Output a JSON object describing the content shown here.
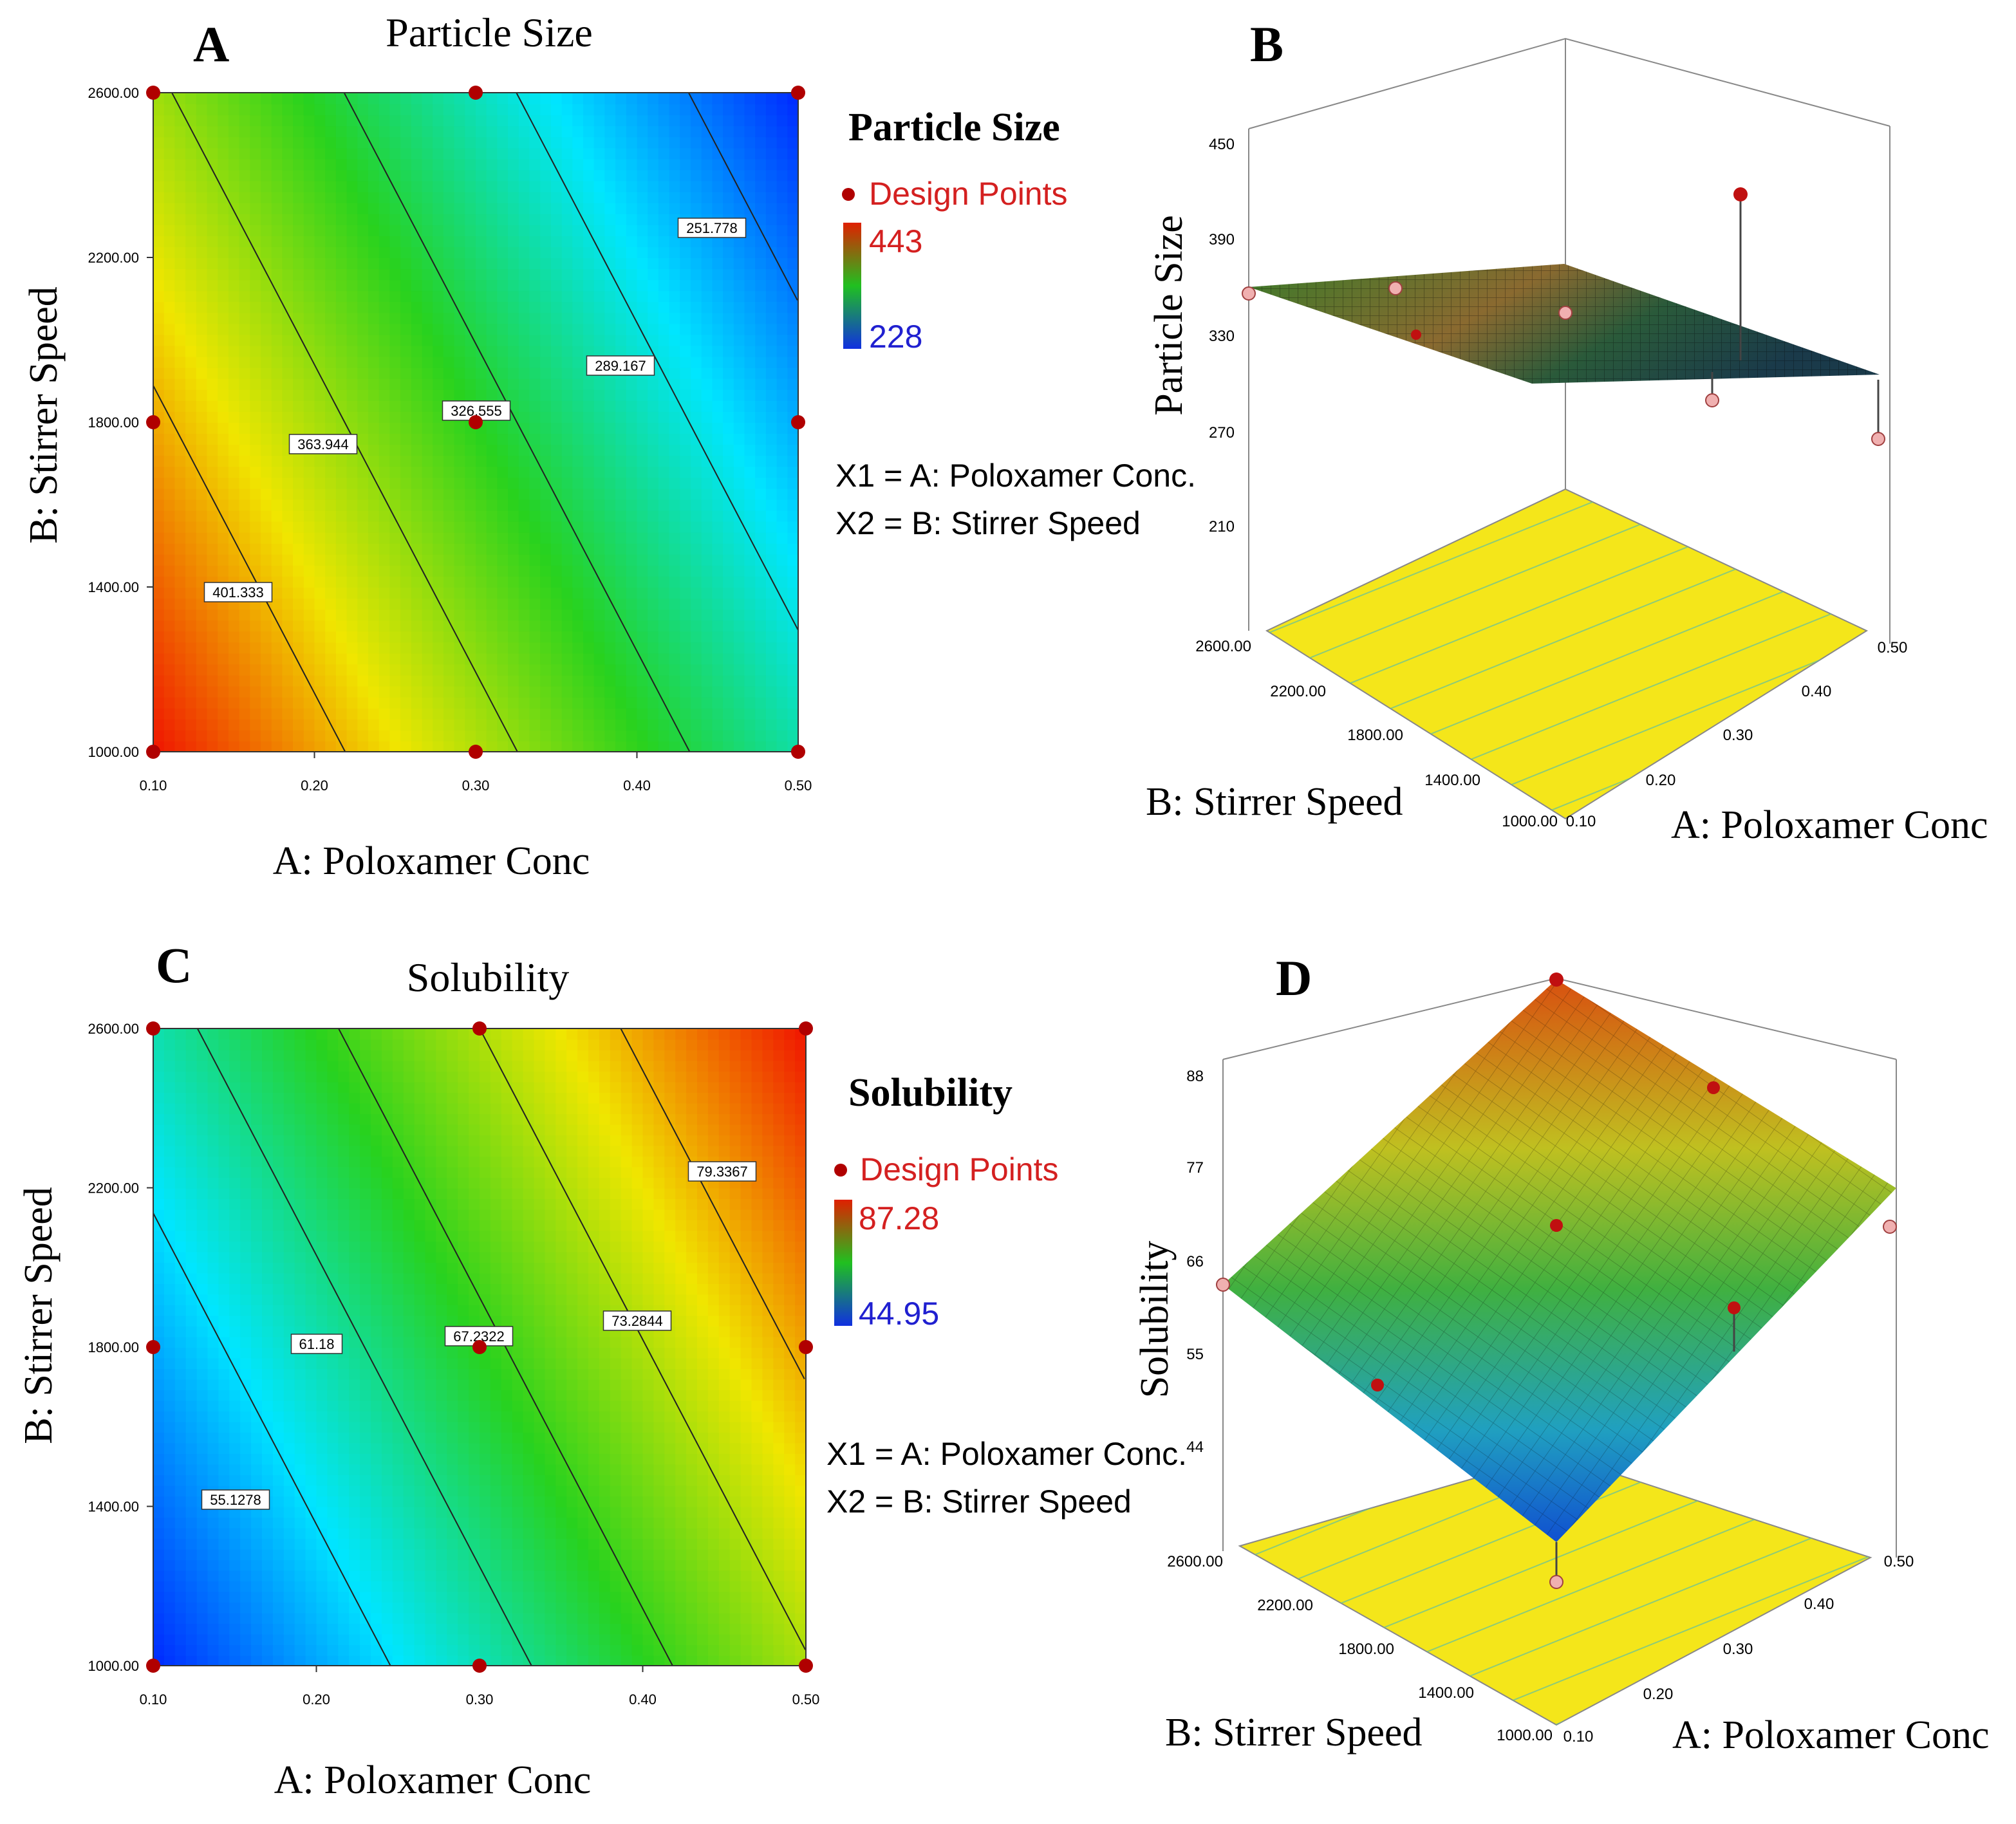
{
  "panels": {
    "A": {
      "letter": "A",
      "title": "Particle Size",
      "xlabel": "A: Poloxamer Conc",
      "ylabel": "B: Stirrer Speed"
    },
    "B": {
      "letter": "B",
      "zlabel": "Particle Size",
      "xlabel": "A: Poloxamer Conc",
      "ylabel": "B: Stirrer Speed"
    },
    "C": {
      "letter": "C",
      "title": "Solubility",
      "xlabel": "A: Poloxamer Conc",
      "ylabel": "B: Stirrer Speed"
    },
    "D": {
      "letter": "D",
      "zlabel": "Solubility",
      "xlabel": "A: Poloxamer Conc",
      "ylabel": "B: Stirrer Speed"
    }
  },
  "legend_ps": {
    "title": "Particle Size",
    "design_points": "Design Points",
    "max": "443",
    "min": "228",
    "x1": "X1 = A: Poloxamer Conc.",
    "x2": "X2 = B: Stirrer Speed"
  },
  "legend_sol": {
    "title": "Solubility",
    "design_points": "Design Points",
    "max": "87.28",
    "min": "44.95",
    "x1": "X1 = A: Poloxamer Conc.",
    "x2": "X2 = B: Stirrer Speed"
  },
  "colors": {
    "red": "#d42020",
    "blue": "#2020d0",
    "point": "#b00000"
  },
  "chart_data": [
    {
      "type": "heatmap",
      "subtype": "contour",
      "title": "Particle Size",
      "xlabel": "A: Poloxamer Conc",
      "ylabel": "B: Stirrer Speed",
      "xlim": [
        0.1,
        0.5
      ],
      "ylim": [
        1000,
        2600
      ],
      "xticks": [
        "0.10",
        "0.20",
        "0.30",
        "0.40",
        "0.50"
      ],
      "yticks": [
        "1000.00",
        "1400.00",
        "1800.00",
        "2200.00",
        "2600.00"
      ],
      "range": [
        228,
        443
      ],
      "contours": [
        {
          "value": 401.333,
          "label": "401.333"
        },
        {
          "value": 363.944,
          "label": "363.944"
        },
        {
          "value": 326.555,
          "label": "326.555"
        },
        {
          "value": 289.167,
          "label": "289.167"
        },
        {
          "value": 251.778,
          "label": "251.778"
        }
      ],
      "design_points": [
        [
          0.1,
          1000
        ],
        [
          0.3,
          1000
        ],
        [
          0.5,
          1000
        ],
        [
          0.1,
          1800
        ],
        [
          0.3,
          1800
        ],
        [
          0.5,
          1800
        ],
        [
          0.1,
          2600
        ],
        [
          0.3,
          2600
        ],
        [
          0.5,
          2600
        ]
      ]
    },
    {
      "type": "surface",
      "zlabel": "Particle Size",
      "xlabel": "A: Poloxamer Conc",
      "ylabel": "B: Stirrer Speed",
      "zticks": [
        "450",
        "390",
        "330",
        "270",
        "210"
      ],
      "xticks": [
        "0.10",
        "0.20",
        "0.30",
        "0.40",
        "0.50"
      ],
      "yticks": [
        "1000.00",
        "1400.00",
        "1800.00",
        "2200.00",
        "2600.00"
      ]
    },
    {
      "type": "heatmap",
      "subtype": "contour",
      "title": "Solubility",
      "xlabel": "A: Poloxamer Conc",
      "ylabel": "B: Stirrer Speed",
      "xlim": [
        0.1,
        0.5
      ],
      "ylim": [
        1000,
        2600
      ],
      "xticks": [
        "0.10",
        "0.20",
        "0.30",
        "0.40",
        "0.50"
      ],
      "yticks": [
        "1000.00",
        "1400.00",
        "1800.00",
        "2200.00",
        "2600.00"
      ],
      "range": [
        44.95,
        87.28
      ],
      "contours": [
        {
          "value": 55.1278,
          "label": "55.1278"
        },
        {
          "value": 61.18,
          "label": "61.18"
        },
        {
          "value": 67.2322,
          "label": "67.2322"
        },
        {
          "value": 73.2844,
          "label": "73.2844"
        },
        {
          "value": 79.3367,
          "label": "79.3367"
        }
      ],
      "design_points": [
        [
          0.1,
          1000
        ],
        [
          0.3,
          1000
        ],
        [
          0.5,
          1000
        ],
        [
          0.1,
          1800
        ],
        [
          0.3,
          1800
        ],
        [
          0.5,
          1800
        ],
        [
          0.1,
          2600
        ],
        [
          0.3,
          2600
        ],
        [
          0.5,
          2600
        ]
      ]
    },
    {
      "type": "surface",
      "zlabel": "Solubility",
      "xlabel": "A: Poloxamer Conc",
      "ylabel": "B: Stirrer Speed",
      "zticks": [
        "88",
        "77",
        "66",
        "55",
        "44"
      ],
      "xticks": [
        "0.10",
        "0.20",
        "0.30",
        "0.40",
        "0.50"
      ],
      "yticks": [
        "1000.00",
        "1400.00",
        "1800.00",
        "2200.00",
        "2600.00"
      ]
    }
  ]
}
